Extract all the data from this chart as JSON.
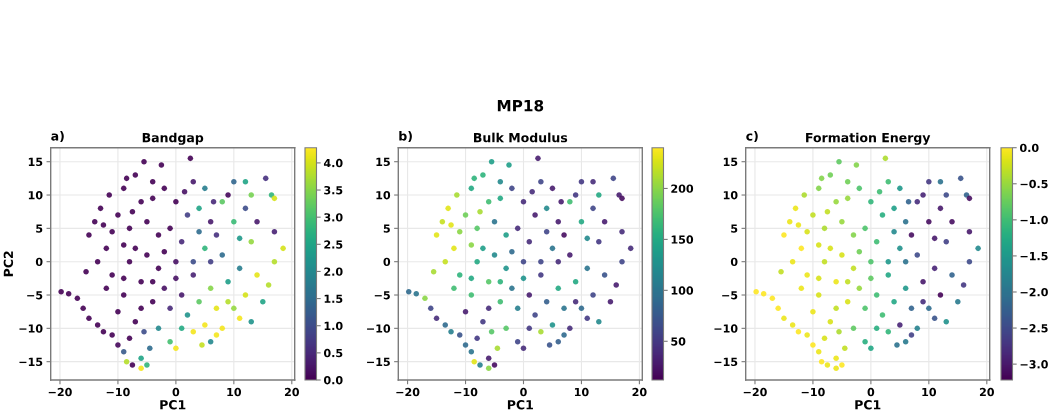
{
  "chart_data": [
    {
      "type": "scatter",
      "title": "Bandgap",
      "xlabel": "PC1",
      "ylabel": "PC2",
      "annotations": [
        "a)"
      ],
      "x": [
        -19.8,
        -18.5,
        -17,
        -16,
        -15,
        -13.5,
        -12.5,
        -11,
        -10,
        -9,
        -8.5,
        -7.5,
        -6,
        -5,
        -6,
        -15,
        -14,
        -13,
        -11.5,
        -12,
        -13.5,
        -15.5,
        -10,
        -9,
        -7,
        -5.5,
        -4,
        -2.5,
        -2,
        0,
        -6,
        -8,
        -5,
        -3,
        -11,
        -11,
        -9,
        -8,
        -6,
        -5,
        -3,
        -4,
        -6,
        -2,
        -10,
        -7,
        -3,
        -4.5,
        -1,
        0,
        0,
        1,
        2,
        2.5,
        3,
        4,
        5,
        3,
        5,
        6,
        4,
        2,
        3,
        5,
        4.5,
        7,
        8,
        9,
        8,
        7,
        8,
        10,
        12,
        15.5,
        10,
        11,
        12,
        10,
        13,
        14,
        15,
        16.5,
        17,
        17,
        18.5,
        17,
        16,
        13,
        11,
        6,
        -1,
        1,
        6,
        9,
        12,
        -8,
        -12,
        -9,
        -7,
        -4,
        -1,
        1,
        -2,
        -9,
        -12.5,
        -7.5,
        -4,
        -8.5,
        1.5,
        4,
        6.5,
        11,
        9,
        6,
        14,
        13,
        3,
        0,
        -5.5,
        7
      ],
      "values": [
        -4.5,
        -4.8,
        -5.5,
        -7,
        -8.5,
        -9.5,
        -10.5,
        -11,
        -12.5,
        -13.5,
        -15,
        -15.5,
        -14.5,
        -15.5,
        -16,
        4,
        6,
        8,
        10,
        2,
        0,
        -1.5,
        7,
        11,
        13,
        15,
        12,
        14.5,
        11,
        9,
        9,
        5,
        6,
        4,
        4.5,
        -2,
        -5,
        0,
        -3,
        1,
        -1,
        -6,
        -7,
        -4,
        -7.5,
        -9,
        -10,
        -13,
        -12,
        -13,
        0,
        3,
        7,
        15.5,
        12,
        8,
        11,
        -2,
        2,
        -4,
        -6,
        -8,
        -10.5,
        -9.5,
        -12.5,
        -7,
        -10,
        -3,
        1,
        4,
        9,
        12,
        12,
        12.5,
        6,
        -1,
        -5,
        -7,
        3,
        -2,
        -6,
        10,
        9.5,
        4.5,
        2,
        0,
        -3.5,
        -9,
        -8.5,
        -12,
        5,
        -5,
        6,
        10,
        8,
        -11.5,
        -4,
        -2.5,
        2,
        -3,
        -7,
        -10,
        1.5,
        2.5,
        5.5,
        7.5,
        9.5,
        12.5,
        10.5,
        4.5,
        9,
        3.5,
        -6,
        0,
        6,
        10,
        0,
        -2.5,
        -10.5,
        -11
      ],
      "cvalues": [
        0,
        0,
        0,
        0,
        0,
        0,
        0,
        0,
        0.1,
        1.2,
        3.8,
        0,
        2.5,
        2.8,
        4.2,
        0,
        0,
        0,
        0,
        0,
        0,
        0,
        0,
        0,
        0,
        0,
        0,
        0,
        0,
        0,
        0,
        0,
        0,
        0,
        0,
        0,
        0,
        0,
        0,
        0,
        0,
        0,
        0,
        0.2,
        0,
        0,
        2,
        1.5,
        3,
        4.2,
        0.2,
        0.5,
        0.8,
        0,
        0.3,
        2.5,
        1.8,
        0.4,
        2.8,
        3.5,
        3.2,
        2.2,
        4.2,
        4.2,
        3.9,
        4.1,
        4.2,
        2.4,
        1.5,
        0.6,
        3.2,
        1.4,
        2.5,
        0.6,
        2.9,
        1.8,
        4,
        3.6,
        3.6,
        4.1,
        2.5,
        2.8,
        4,
        0.4,
        4,
        3.8,
        3.8,
        2.2,
        4.2,
        2,
        0,
        0.3,
        0.3,
        0.1,
        1,
        0,
        0,
        0,
        0,
        0,
        0.5,
        2.6,
        0,
        0,
        0,
        0,
        0,
        0,
        0.2,
        1.5,
        0.5,
        2.3,
        3.8,
        0.8,
        0.3,
        3.4,
        1,
        0.2,
        1,
        4.2
      ],
      "xlim": [
        -21.6,
        20.5
      ],
      "ylim": [
        -17.75,
        17.1
      ],
      "xticks": [
        -20,
        -10,
        0,
        10,
        20
      ],
      "yticks": [
        -15,
        -10,
        -5,
        0,
        5,
        10,
        15
      ],
      "clim": [
        0,
        4.28
      ],
      "cticks": [
        {
          "value": 0,
          "label": "0.0"
        },
        {
          "value": 0.5,
          "label": "0.5"
        },
        {
          "value": 1,
          "label": "1.0"
        },
        {
          "value": 1.5,
          "label": "1.5"
        },
        {
          "value": 2,
          "label": "2.0"
        },
        {
          "value": 2.5,
          "label": "2.5"
        },
        {
          "value": 3,
          "label": "3.0"
        },
        {
          "value": 3.5,
          "label": "3.5"
        },
        {
          "value": 4,
          "label": "4.0"
        }
      ],
      "grid": true
    },
    {
      "type": "scatter",
      "title": "Bulk Modulus",
      "xlabel": "PC1",
      "annotations": [
        "b)",
        "MP18"
      ],
      "x": [
        -19.8,
        -18.5,
        -17,
        -16,
        -15,
        -13.5,
        -12.5,
        -11,
        -10,
        -9,
        -8.5,
        -7.5,
        -6,
        -5,
        -6,
        -15,
        -14,
        -13,
        -11.5,
        -12,
        -13.5,
        -15.5,
        -10,
        -9,
        -7,
        -5.5,
        -4,
        -2.5,
        -2,
        0,
        -6,
        -8,
        -5,
        -3,
        -11,
        -11,
        -9,
        -8,
        -6,
        -5,
        -3,
        -4,
        -6,
        -2,
        -10,
        -7,
        -3,
        -4.5,
        -1,
        0,
        0,
        1,
        2,
        2.5,
        3,
        4,
        5,
        3,
        5,
        6,
        4,
        2,
        3,
        5,
        4.5,
        7,
        8,
        9,
        8,
        7,
        8,
        10,
        12,
        15.5,
        10,
        11,
        12,
        10,
        13,
        14,
        15,
        16.5,
        17,
        17,
        18.5,
        17,
        16,
        13,
        11,
        6,
        -1,
        1,
        6,
        9,
        12,
        -8,
        -12,
        -9,
        -7,
        -4,
        -1,
        1,
        -2,
        -9,
        -12.5,
        -7.5,
        -4,
        -8.5,
        1.5,
        4,
        6.5,
        11,
        9,
        6,
        14,
        13,
        3,
        0,
        -5.5,
        7
      ],
      "values": [
        -4.5,
        -4.8,
        -5.5,
        -7,
        -8.5,
        -9.5,
        -10.5,
        -11,
        -12.5,
        -13.5,
        -15,
        -15.5,
        -14.5,
        -15.5,
        -16,
        4,
        6,
        8,
        10,
        2,
        0,
        -1.5,
        7,
        11,
        13,
        15,
        12,
        14.5,
        11,
        9,
        9,
        5,
        6,
        4,
        4.5,
        -2,
        -5,
        0,
        -3,
        1,
        -1,
        -6,
        -7,
        -4,
        -7.5,
        -9,
        -10,
        -13,
        -12,
        -13,
        0,
        3,
        7,
        15.5,
        12,
        8,
        11,
        -2,
        2,
        -4,
        -6,
        -8,
        -10.5,
        -9.5,
        -12.5,
        -7,
        -10,
        -3,
        1,
        4,
        9,
        12,
        12,
        12.5,
        6,
        -1,
        -5,
        -7,
        3,
        -2,
        -6,
        10,
        9.5,
        4.5,
        2,
        0,
        -3.5,
        -9,
        -8.5,
        -12,
        5,
        -5,
        6,
        10,
        8,
        -11.5,
        -4,
        -2.5,
        2,
        -3,
        -7,
        -10,
        1.5,
        2.5,
        5.5,
        7.5,
        9.5,
        12.5,
        10.5,
        4.5,
        9,
        3.5,
        -6,
        0,
        6,
        10,
        0,
        -2.5,
        -10.5,
        -11
      ],
      "cvalues": [
        90,
        100,
        200,
        60,
        40,
        90,
        110,
        70,
        90,
        100,
        230,
        110,
        30,
        20,
        200,
        230,
        220,
        230,
        210,
        230,
        220,
        210,
        190,
        150,
        160,
        140,
        120,
        140,
        60,
        40,
        170,
        180,
        100,
        140,
        200,
        160,
        170,
        150,
        180,
        120,
        130,
        170,
        40,
        100,
        30,
        50,
        180,
        210,
        60,
        40,
        60,
        40,
        30,
        30,
        60,
        120,
        30,
        50,
        100,
        150,
        80,
        60,
        210,
        130,
        70,
        100,
        40,
        150,
        30,
        20,
        170,
        50,
        40,
        60,
        150,
        100,
        60,
        90,
        50,
        70,
        30,
        30,
        20,
        40,
        40,
        60,
        30,
        120,
        50,
        80,
        40,
        30,
        30,
        50,
        60,
        50,
        170,
        150,
        140,
        160,
        110,
        50,
        90,
        200,
        230,
        210,
        150,
        160,
        40,
        60,
        30,
        120,
        40,
        40,
        30,
        150,
        60,
        130,
        180,
        90
      ],
      "xlim": [
        -21.6,
        20.5
      ],
      "ylim": [
        -17.75,
        17.1
      ],
      "xticks": [
        -20,
        -10,
        0,
        10,
        20
      ],
      "yticks": [
        -15,
        -10,
        -5,
        0,
        5,
        10,
        15
      ],
      "clim": [
        12,
        240
      ],
      "cticks": [
        50,
        100,
        150,
        200
      ],
      "grid": true
    },
    {
      "type": "scatter",
      "title": "Formation Energy",
      "xlabel": "PC1",
      "annotations": [
        "c)"
      ],
      "x": [
        -19.8,
        -18.5,
        -17,
        -16,
        -15,
        -13.5,
        -12.5,
        -11,
        -10,
        -9,
        -8.5,
        -7.5,
        -6,
        -5,
        -6,
        -15,
        -14,
        -13,
        -11.5,
        -12,
        -13.5,
        -15.5,
        -10,
        -9,
        -7,
        -5.5,
        -4,
        -2.5,
        -2,
        0,
        -6,
        -8,
        -5,
        -3,
        -11,
        -11,
        -9,
        -8,
        -6,
        -5,
        -3,
        -4,
        -6,
        -2,
        -10,
        -7,
        -3,
        -4.5,
        -1,
        0,
        0,
        1,
        2,
        2.5,
        3,
        4,
        5,
        3,
        5,
        6,
        4,
        2,
        3,
        5,
        4.5,
        7,
        8,
        9,
        8,
        7,
        8,
        10,
        12,
        15.5,
        10,
        11,
        12,
        10,
        13,
        14,
        15,
        16.5,
        17,
        17,
        18.5,
        17,
        16,
        13,
        11,
        6,
        -1,
        1,
        6,
        9,
        12,
        -8,
        -12,
        -9,
        -7,
        -4,
        -1,
        1,
        -2,
        -9,
        -12.5,
        -7.5,
        -4,
        -8.5,
        1.5,
        4,
        6.5,
        11,
        9,
        6,
        14,
        13,
        3,
        0,
        -5.5,
        7
      ],
      "values": [
        -4.5,
        -4.8,
        -5.5,
        -7,
        -8.5,
        -9.5,
        -10.5,
        -11,
        -12.5,
        -13.5,
        -15,
        -15.5,
        -14.5,
        -15.5,
        -16,
        4,
        6,
        8,
        10,
        2,
        0,
        -1.5,
        7,
        11,
        13,
        15,
        12,
        14.5,
        11,
        9,
        9,
        5,
        6,
        4,
        4.5,
        -2,
        -5,
        0,
        -3,
        1,
        -1,
        -6,
        -7,
        -4,
        -7.5,
        -9,
        -10,
        -13,
        -12,
        -13,
        0,
        3,
        7,
        15.5,
        12,
        8,
        11,
        -2,
        2,
        -4,
        -6,
        -8,
        -10.5,
        -9.5,
        -12.5,
        -7,
        -10,
        -3,
        1,
        4,
        9,
        12,
        12,
        12.5,
        6,
        -1,
        -5,
        -7,
        3,
        -2,
        -6,
        10,
        9.5,
        4.5,
        2,
        0,
        -3.5,
        -9,
        -8.5,
        -12,
        5,
        -5,
        6,
        10,
        8,
        -11.5,
        -4,
        -2.5,
        2,
        -3,
        -7,
        -10,
        1.5,
        2.5,
        5.5,
        7.5,
        9.5,
        12.5,
        10.5,
        4.5,
        9,
        3.5,
        -6,
        0,
        6,
        10,
        0,
        -2.5,
        -10.5,
        -11
      ],
      "cvalues": [
        0,
        0,
        0,
        0,
        -0.1,
        -0.1,
        0,
        -0.1,
        0,
        -0.1,
        0,
        -0.1,
        -0.1,
        0,
        -0.1,
        0,
        -0.1,
        -0.1,
        -0.4,
        0,
        -0.1,
        -0.3,
        -0.3,
        -0.6,
        -0.7,
        -0.8,
        -0.7,
        -0.6,
        -0.9,
        -1.1,
        -0.5,
        -0.4,
        -0.5,
        -0.6,
        -0.2,
        -0.1,
        -0.2,
        -0.3,
        -0.1,
        -0.2,
        -0.3,
        -0.2,
        -0.3,
        -0.5,
        -0.1,
        -0.2,
        -0.8,
        -0.3,
        -1.2,
        -1.3,
        -0.9,
        -1,
        -1.2,
        -0.4,
        -1,
        -1.4,
        -1.5,
        -1.3,
        -1.6,
        -1.5,
        -1.3,
        -1,
        -1.1,
        -2.9,
        -2,
        -2.2,
        -1.8,
        -3,
        -2.5,
        -3.1,
        -2.8,
        -2.7,
        -2,
        -2.4,
        -3.1,
        -2.9,
        -3.2,
        -2.1,
        -2.6,
        -2.2,
        -1.9,
        -2.2,
        -3.1,
        -3,
        -1.7,
        -2.5,
        -2.7,
        -1.6,
        -2.4,
        -1.9,
        -0.9,
        -1,
        -2,
        -2.9,
        -3,
        -0.2,
        -0.1,
        -0.2,
        -0.2,
        -0.3,
        -0.9,
        -1.2,
        -0.7,
        -0.2,
        -0.1,
        -0.3,
        -0.5,
        -0.6,
        -1,
        -1.7,
        -2.2,
        -3,
        -2.8,
        -2,
        -3.1,
        -2.5,
        -1.5,
        -0.8,
        -0.4,
        -2.6
      ],
      "xlim": [
        -21.6,
        20.5
      ],
      "ylim": [
        -17.75,
        17.1
      ],
      "xticks": [
        -20,
        -10,
        0,
        10,
        20
      ],
      "yticks": [
        -15,
        -10,
        -5,
        0,
        5,
        10,
        15
      ],
      "clim": [
        -3.22,
        0
      ],
      "cticks": [
        {
          "value": -3,
          "label": "−3.0"
        },
        {
          "value": -2.5,
          "label": "−2.5"
        },
        {
          "value": -2,
          "label": "−2.0"
        },
        {
          "value": -1.5,
          "label": "−1.5"
        },
        {
          "value": -1,
          "label": "−1.0"
        },
        {
          "value": -0.5,
          "label": "−0.5"
        },
        {
          "value": 0,
          "label": "0.0"
        }
      ],
      "grid": true
    }
  ]
}
